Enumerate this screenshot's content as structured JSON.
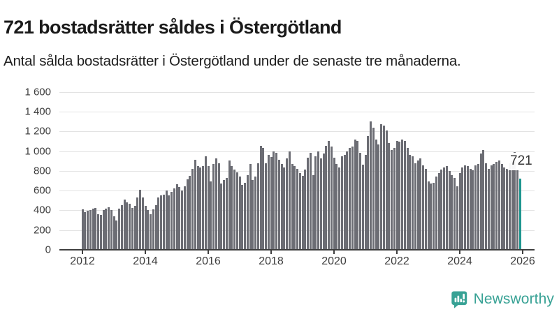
{
  "header": {
    "title": "721 bostadsrätter såldes i Östergötland",
    "subtitle": "Antal sålda bostadsrätter i Östergötland under de senaste tre månaderna."
  },
  "chart_data": {
    "type": "bar",
    "title": "721 bostadsrätter såldes i Östergötland",
    "subtitle": "Antal sålda bostadsrätter i Östergötland under de senaste tre månaderna.",
    "x_start": "2012-01",
    "x_end": "2025-12",
    "x_frequency": "monthly",
    "ylim": [
      0,
      1600
    ],
    "grid": "horizontal",
    "legend": "none",
    "y_ticks": [
      {
        "v": 0,
        "label": "0"
      },
      {
        "v": 200,
        "label": "200"
      },
      {
        "v": 400,
        "label": "400"
      },
      {
        "v": 600,
        "label": "600"
      },
      {
        "v": 800,
        "label": "800"
      },
      {
        "v": 1000,
        "label": "1 000"
      },
      {
        "v": 1200,
        "label": "1 200"
      },
      {
        "v": 1400,
        "label": "1 400"
      },
      {
        "v": 1600,
        "label": "1 600"
      }
    ],
    "x_ticks": [
      {
        "year": 2012,
        "label": "2012"
      },
      {
        "year": 2014,
        "label": "2014"
      },
      {
        "year": 2016,
        "label": "2016"
      },
      {
        "year": 2018,
        "label": "2018"
      },
      {
        "year": 2020,
        "label": "2020"
      },
      {
        "year": 2022,
        "label": "2022"
      },
      {
        "year": 2024,
        "label": "2024"
      },
      {
        "year": 2026,
        "label": "2026"
      }
    ],
    "values": [
      410,
      385,
      395,
      405,
      415,
      425,
      360,
      350,
      400,
      420,
      430,
      400,
      340,
      295,
      420,
      455,
      510,
      480,
      465,
      425,
      445,
      530,
      610,
      527,
      445,
      400,
      362,
      410,
      455,
      527,
      550,
      560,
      600,
      550,
      586,
      621,
      668,
      633,
      600,
      645,
      715,
      750,
      820,
      915,
      845,
      833,
      845,
      950,
      845,
      690,
      870,
      925,
      880,
      670,
      705,
      725,
      905,
      845,
      810,
      785,
      740,
      655,
      680,
      760,
      870,
      705,
      740,
      880,
      1055,
      1035,
      880,
      960,
      940,
      1000,
      985,
      915,
      870,
      835,
      925,
      1000,
      870,
      845,
      820,
      775,
      750,
      810,
      930,
      985,
      760,
      950,
      1000,
      925,
      975,
      1055,
      1105,
      1045,
      930,
      870,
      835,
      950,
      960,
      1000,
      1035,
      1045,
      1115,
      1105,
      985,
      865,
      965,
      1155,
      1300,
      1240,
      1120,
      1070,
      1270,
      1260,
      1210,
      1080,
      1010,
      1035,
      1105,
      1095,
      1120,
      1105,
      1033,
      962,
      950,
      880,
      905,
      927,
      857,
      820,
      690,
      670,
      680,
      740,
      775,
      810,
      835,
      845,
      800,
      760,
      727,
      645,
      780,
      833,
      857,
      845,
      821,
      809,
      857,
      868,
      975,
      1010,
      880,
      820,
      855,
      870,
      890,
      905,
      868,
      833,
      821,
      880,
      900,
      990,
      810,
      721
    ],
    "bar_color": "#6c6d74",
    "highlight": {
      "index": 167,
      "value": 721,
      "label": "721",
      "color": "#1e968f"
    }
  },
  "footer": {
    "brand": "Newsworthy",
    "logo": "newsworthy-speech-bubble-chart-icon",
    "brand_color": "#38a295"
  }
}
